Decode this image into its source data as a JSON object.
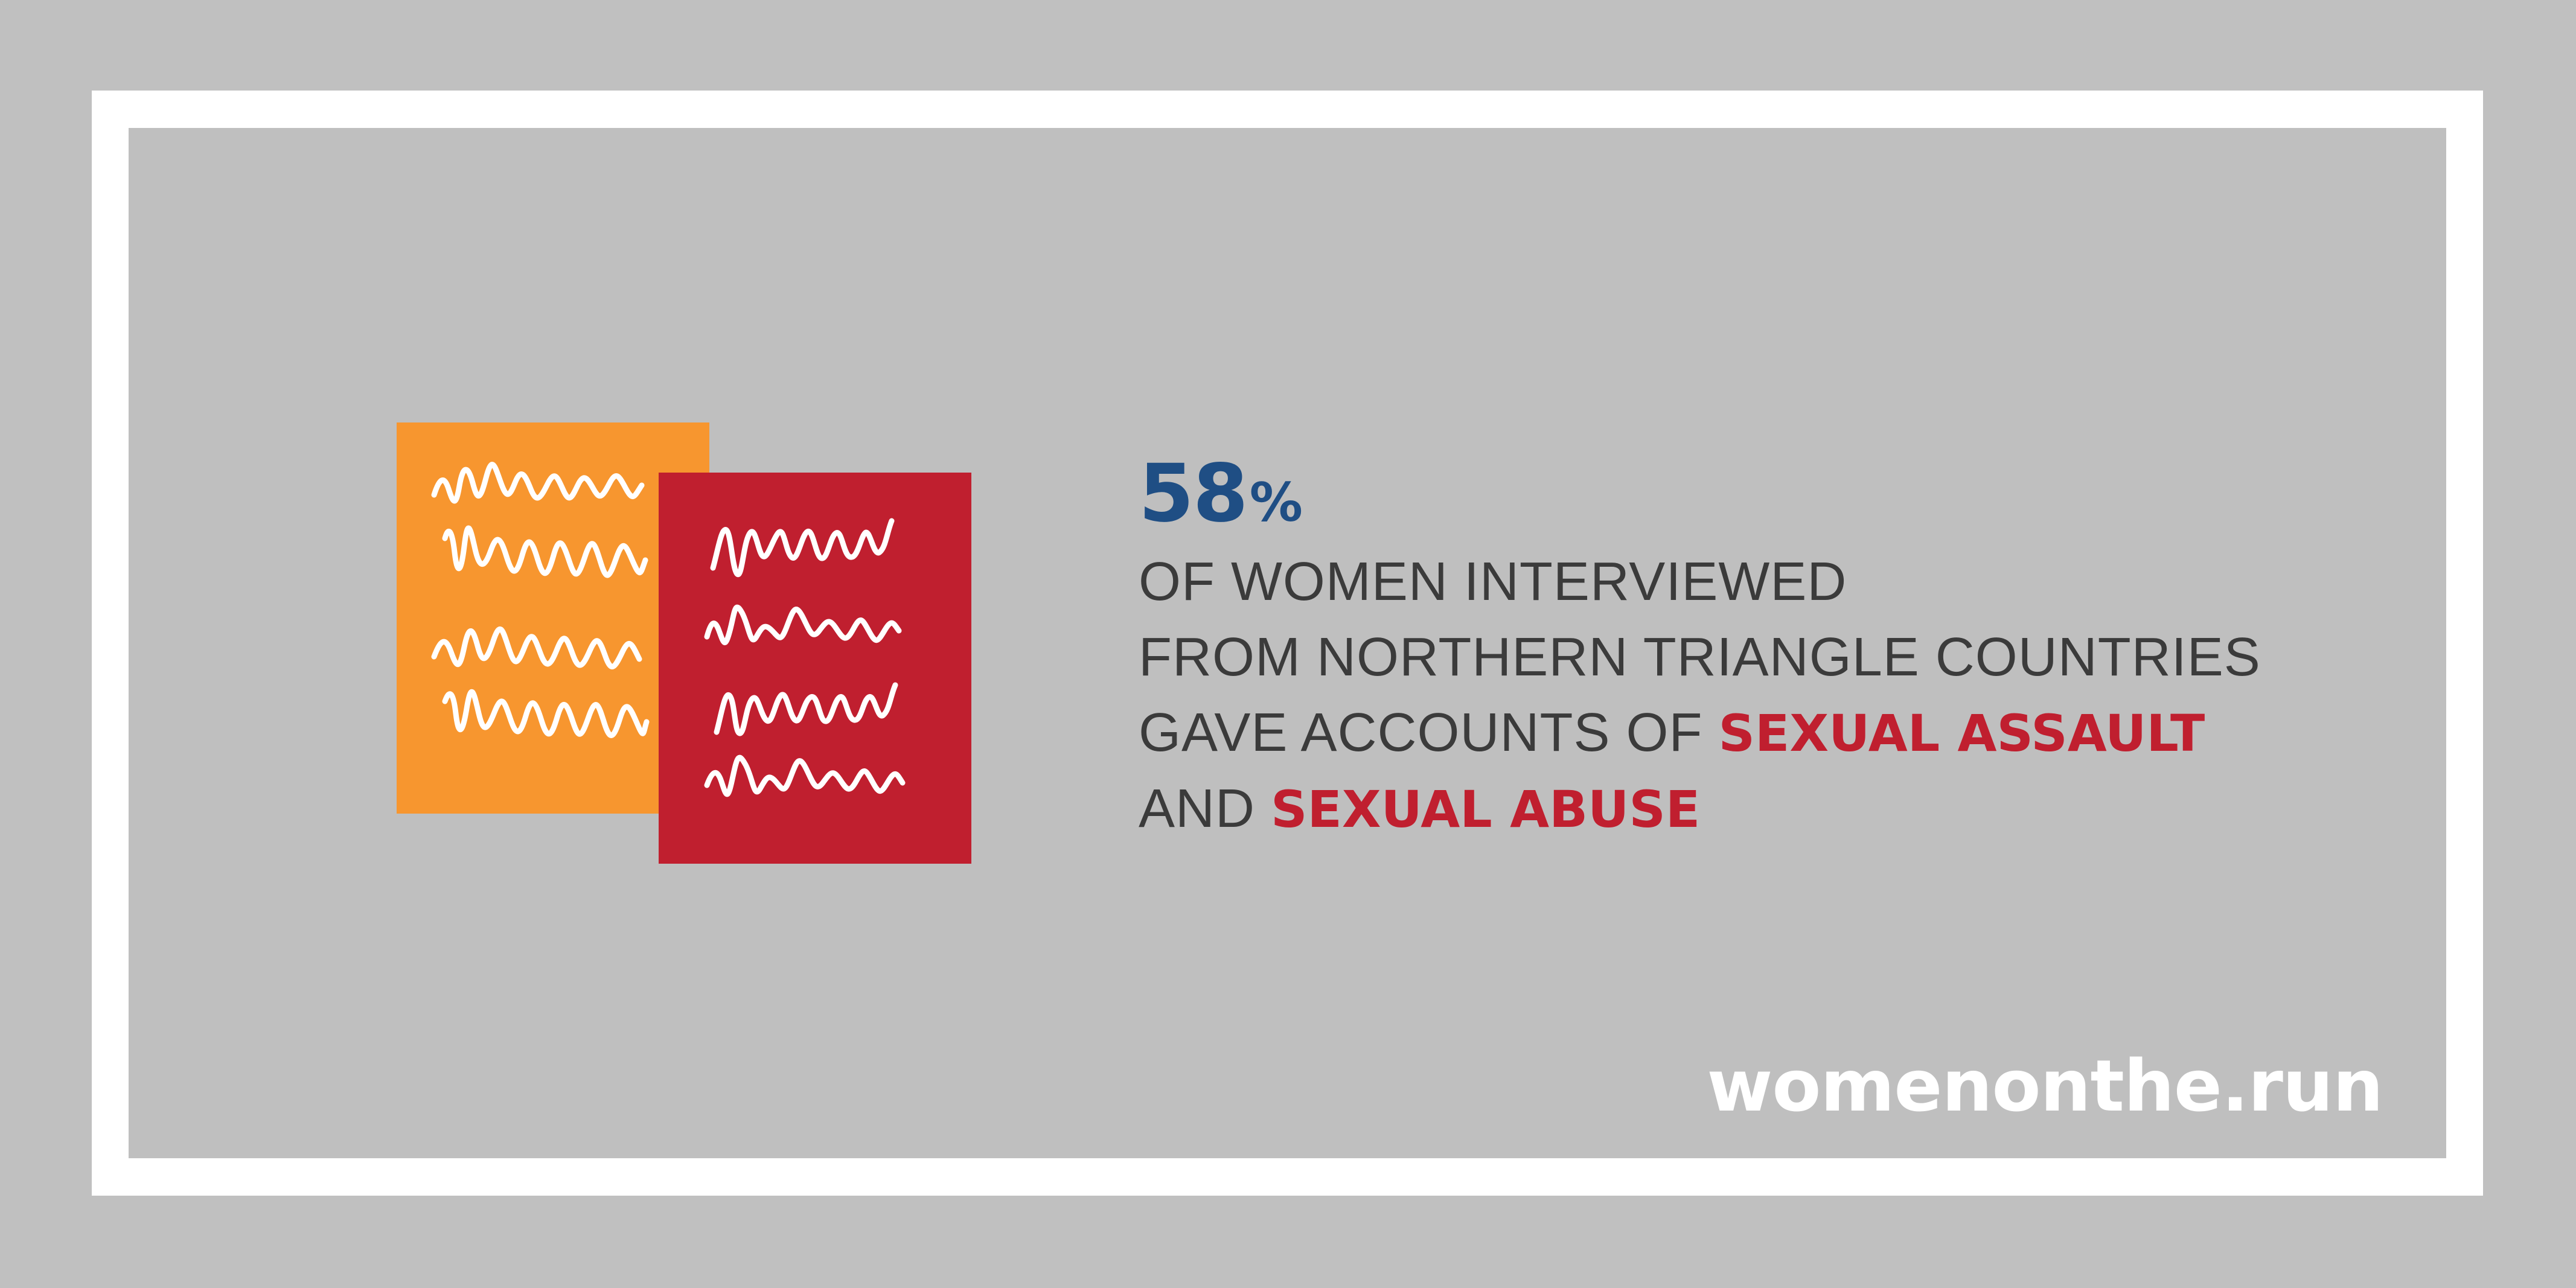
{
  "colors": {
    "background": "#c0c0c0",
    "frame": "#ffffff",
    "panel": "#bfbfbf",
    "orange_document": "#f7962f",
    "red_document": "#c01f2f",
    "stat_blue": "#1f4e84",
    "highlight_red": "#c01f2f",
    "body_text": "#3b3b3b"
  },
  "illustration": {
    "back_document_icon": "scribbled-document-icon",
    "front_document_icon": "scribbled-document-icon"
  },
  "stat": {
    "number": "58",
    "unit": "%",
    "value_percent": 58,
    "line1": "OF WOMEN INTERVIEWED",
    "line2": "FROM NORTHERN TRIANGLE COUNTRIES",
    "line3_prefix": "GAVE ACCOUNTS OF ",
    "line3_highlight": "SEXUAL ASSAULT",
    "line4_prefix": "AND ",
    "line4_highlight": "SEXUAL ABUSE"
  },
  "footer": {
    "website": "womenonthe.run"
  }
}
